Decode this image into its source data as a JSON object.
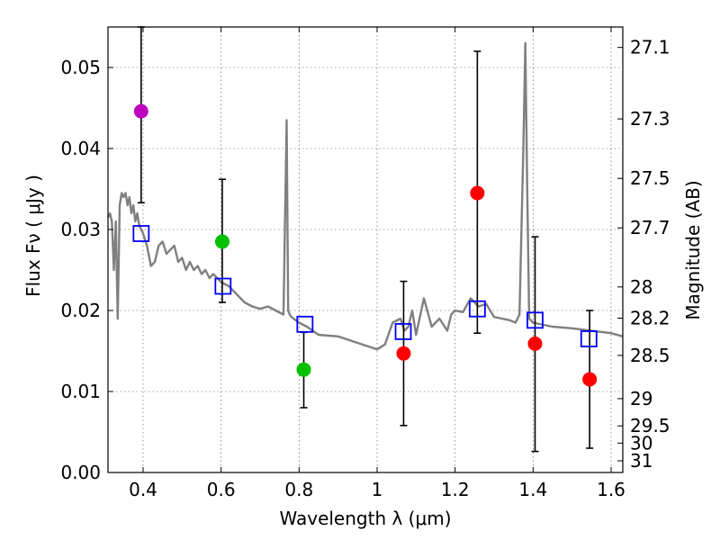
{
  "chart_data": {
    "type": "scatter",
    "xlabel": "Wavelength  λ (μm)",
    "ylabel_left": "Flux  Fν  ( μJy )",
    "ylabel_right": "Magnitude (AB)",
    "xlim": [
      0.31,
      1.63
    ],
    "ylim": [
      0.0,
      0.055
    ],
    "x_ticks": [
      0.4,
      0.6,
      0.8,
      1.0,
      1.2,
      1.4,
      1.6
    ],
    "x_tick_labels": [
      "0.4",
      "0.6",
      "0.8",
      "1",
      "1.2",
      "1.4",
      "1.6"
    ],
    "y_ticks": [
      0.0,
      0.01,
      0.02,
      0.03,
      0.04,
      0.05
    ],
    "y_tick_labels": [
      "0.00",
      "0.01",
      "0.02",
      "0.03",
      "0.04",
      "0.05"
    ],
    "right_ticks": [
      {
        "label": "27.1",
        "mag": 27.1
      },
      {
        "label": "27.3",
        "mag": 27.3
      },
      {
        "label": "27.5",
        "mag": 27.5
      },
      {
        "label": "27.7",
        "mag": 27.7
      },
      {
        "label": "28",
        "mag": 28.0
      },
      {
        "label": "28.2",
        "mag": 28.2
      },
      {
        "label": "28.5",
        "mag": 28.5
      },
      {
        "label": "29",
        "mag": 29.0
      },
      {
        "label": "29.5",
        "mag": 29.5
      },
      {
        "label": "30",
        "mag": 30.0
      },
      {
        "label": "31",
        "mag": 31.0
      }
    ],
    "grid": true,
    "template_color": "#808080",
    "template_spectrum": {
      "x": [
        0.31,
        0.315,
        0.32,
        0.325,
        0.33,
        0.335,
        0.34,
        0.345,
        0.35,
        0.355,
        0.36,
        0.365,
        0.37,
        0.375,
        0.38,
        0.385,
        0.39,
        0.4,
        0.41,
        0.42,
        0.43,
        0.44,
        0.45,
        0.46,
        0.47,
        0.48,
        0.49,
        0.5,
        0.51,
        0.52,
        0.53,
        0.54,
        0.55,
        0.56,
        0.57,
        0.58,
        0.6,
        0.62,
        0.64,
        0.66,
        0.68,
        0.7,
        0.72,
        0.74,
        0.76,
        0.768,
        0.772,
        0.776,
        0.78,
        0.8,
        0.82,
        0.85,
        0.9,
        0.95,
        1.0,
        1.02,
        1.04,
        1.06,
        1.07,
        1.08,
        1.09,
        1.1,
        1.12,
        1.14,
        1.16,
        1.18,
        1.19,
        1.2,
        1.22,
        1.24,
        1.26,
        1.28,
        1.3,
        1.32,
        1.34,
        1.355,
        1.365,
        1.375,
        1.38,
        1.385,
        1.39,
        1.4,
        1.45,
        1.5,
        1.55,
        1.6,
        1.63
      ],
      "y": [
        0.0315,
        0.032,
        0.031,
        0.025,
        0.031,
        0.019,
        0.033,
        0.0345,
        0.034,
        0.0345,
        0.033,
        0.034,
        0.032,
        0.033,
        0.031,
        0.032,
        0.0305,
        0.0295,
        0.028,
        0.0255,
        0.026,
        0.028,
        0.0285,
        0.027,
        0.0275,
        0.028,
        0.026,
        0.0265,
        0.025,
        0.026,
        0.025,
        0.0255,
        0.0245,
        0.025,
        0.024,
        0.0245,
        0.0235,
        0.023,
        0.022,
        0.021,
        0.0205,
        0.0202,
        0.0205,
        0.02,
        0.0195,
        0.0435,
        0.02,
        0.0195,
        0.0192,
        0.0185,
        0.018,
        0.017,
        0.0168,
        0.016,
        0.0152,
        0.0158,
        0.0185,
        0.019,
        0.0175,
        0.018,
        0.02,
        0.017,
        0.0215,
        0.018,
        0.019,
        0.0175,
        0.0195,
        0.02,
        0.0198,
        0.0215,
        0.0205,
        0.0208,
        0.0192,
        0.019,
        0.0188,
        0.0185,
        0.0195,
        0.04,
        0.053,
        0.035,
        0.019,
        0.0185,
        0.018,
        0.0178,
        0.0175,
        0.0172,
        0.0168
      ]
    },
    "model_points": {
      "color": "#0000ff",
      "x": [
        0.395,
        0.605,
        0.815,
        1.067,
        1.257,
        1.405,
        1.543
      ],
      "y": [
        0.0295,
        0.023,
        0.0183,
        0.0174,
        0.0202,
        0.0188,
        0.0165
      ]
    },
    "observed_points": [
      {
        "x": 0.395,
        "y": 0.0446,
        "err_low": 0.0333,
        "err_high": 0.055,
        "color": "#bf00bf"
      },
      {
        "x": 0.603,
        "y": 0.0285,
        "err_low": 0.021,
        "err_high": 0.0362,
        "color": "#00c000"
      },
      {
        "x": 0.812,
        "y": 0.0127,
        "err_low": 0.008,
        "err_high": 0.0173,
        "color": "#00c000"
      },
      {
        "x": 1.068,
        "y": 0.0147,
        "err_low": 0.0058,
        "err_high": 0.0236,
        "color": "#ff0000"
      },
      {
        "x": 1.257,
        "y": 0.0345,
        "err_low": 0.0172,
        "err_high": 0.052,
        "color": "#ff0000"
      },
      {
        "x": 1.405,
        "y": 0.0159,
        "err_low": 0.0026,
        "err_high": 0.0291,
        "color": "#ff0000"
      },
      {
        "x": 1.545,
        "y": 0.0115,
        "err_low": 0.003,
        "err_high": 0.02,
        "color": "#ff0000"
      }
    ]
  }
}
